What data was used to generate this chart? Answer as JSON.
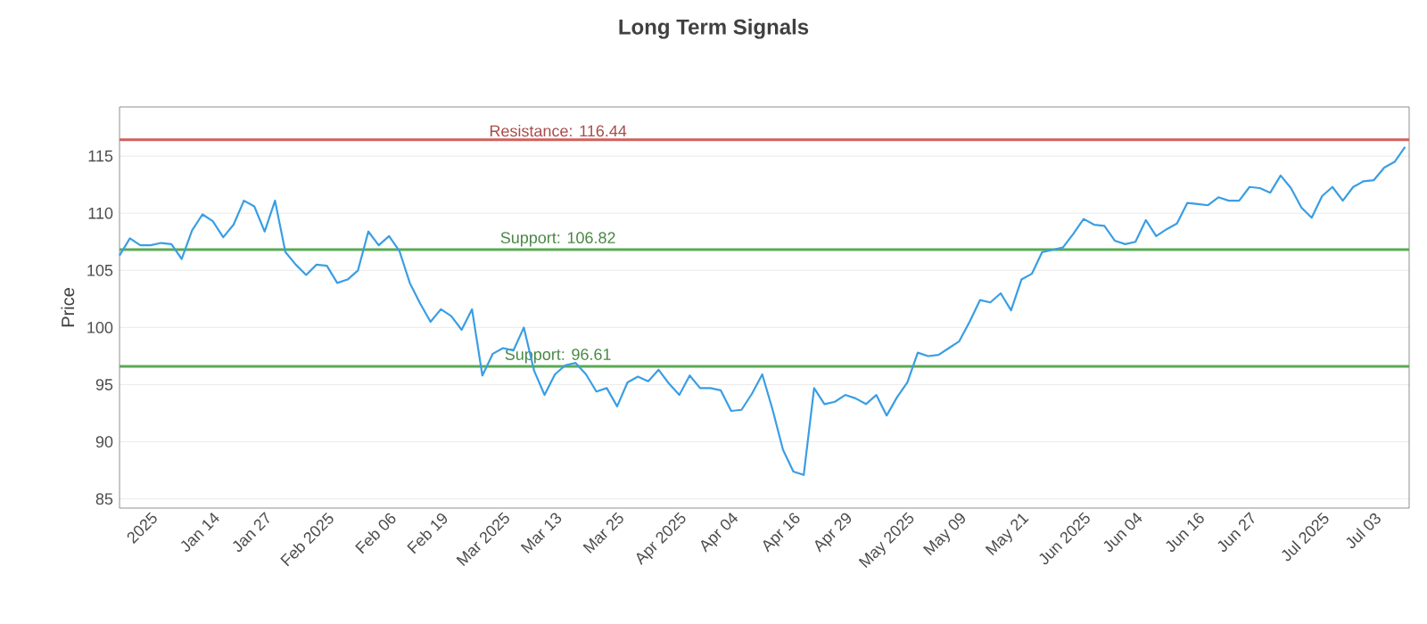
{
  "chart_data": {
    "type": "line",
    "title": "Long Term Signals",
    "ylabel": "Price",
    "categories": [
      null,
      null,
      null,
      "2025",
      null,
      null,
      null,
      null,
      null,
      "Jan 14",
      null,
      null,
      null,
      null,
      "Jan 27",
      null,
      null,
      null,
      null,
      null,
      "Feb 2025",
      null,
      null,
      null,
      null,
      null,
      "Feb 06",
      null,
      null,
      null,
      null,
      "Feb 19",
      null,
      null,
      null,
      null,
      null,
      "Mar 2025",
      null,
      null,
      null,
      null,
      "Mar 13",
      null,
      null,
      null,
      null,
      null,
      "Mar 25",
      null,
      null,
      null,
      null,
      null,
      "Apr 2025",
      null,
      null,
      null,
      null,
      "Apr 04",
      null,
      null,
      null,
      null,
      null,
      "Apr 16",
      null,
      null,
      null,
      null,
      "Apr 29",
      null,
      null,
      null,
      null,
      null,
      "May 2025",
      null,
      null,
      null,
      null,
      "May 09",
      null,
      null,
      null,
      null,
      null,
      "May 21",
      null,
      null,
      null,
      null,
      null,
      "Jun 2025",
      null,
      null,
      null,
      null,
      "Jun 04",
      null,
      null,
      null,
      null,
      null,
      "Jun 16",
      null,
      null,
      null,
      null,
      "Jun 27",
      null,
      null,
      null,
      null,
      null,
      null,
      "Jul 2025",
      null,
      null,
      null,
      null,
      "Jul 03",
      null,
      null,
      null
    ],
    "series": [
      {
        "color": "#3a9ee4",
        "values": [
          106.3,
          107.8,
          107.2,
          107.2,
          107.4,
          107.3,
          106.0,
          108.5,
          109.9,
          109.3,
          107.9,
          109.0,
          111.1,
          110.6,
          108.4,
          111.1,
          106.6,
          105.5,
          104.6,
          105.5,
          105.4,
          103.9,
          104.2,
          105.0,
          108.4,
          107.2,
          108.0,
          106.7,
          103.9,
          102.1,
          100.5,
          101.6,
          101.0,
          99.8,
          101.6,
          95.8,
          97.7,
          98.2,
          98.0,
          100.0,
          96.2,
          94.1,
          95.9,
          96.7,
          96.9,
          95.9,
          94.4,
          94.7,
          93.1,
          95.2,
          95.7,
          95.3,
          96.3,
          95.1,
          94.1,
          95.8,
          94.7,
          94.7,
          94.5,
          92.7,
          92.8,
          94.2,
          95.9,
          92.8,
          89.3,
          87.4,
          87.1,
          94.7,
          93.3,
          93.5,
          94.1,
          93.8,
          93.3,
          94.1,
          92.3,
          93.9,
          95.2,
          97.8,
          97.5,
          97.6,
          98.2,
          98.8,
          100.5,
          102.4,
          102.2,
          103.0,
          101.5,
          104.2,
          104.7,
          106.6,
          106.8,
          107.0,
          108.2,
          109.5,
          109.0,
          108.9,
          107.6,
          107.3,
          107.5,
          109.4,
          108.0,
          108.6,
          109.1,
          110.9,
          110.8,
          110.7,
          111.4,
          111.1,
          111.1,
          112.3,
          112.2,
          111.8,
          113.3,
          112.2,
          110.5,
          109.6,
          111.5,
          112.3,
          111.1,
          112.3,
          112.8,
          112.9,
          114.0,
          114.5,
          115.8
        ]
      }
    ],
    "ylim": [
      84.2,
      119.3
    ],
    "yticks": [
      85,
      90,
      95,
      100,
      105,
      110,
      115
    ],
    "grid": "y",
    "marker": "none",
    "line_style": "solid",
    "ref_lines": [
      {
        "axis": "y",
        "value": 116.44,
        "label": "Resistance: 116.44",
        "color": "#d0605c"
      },
      {
        "axis": "y",
        "value": 106.82,
        "label": "Support: 106.82",
        "color": "#5aaa55"
      },
      {
        "axis": "y",
        "value": 96.61,
        "label": "Support: 96.61",
        "color": "#5aaa55"
      }
    ]
  }
}
